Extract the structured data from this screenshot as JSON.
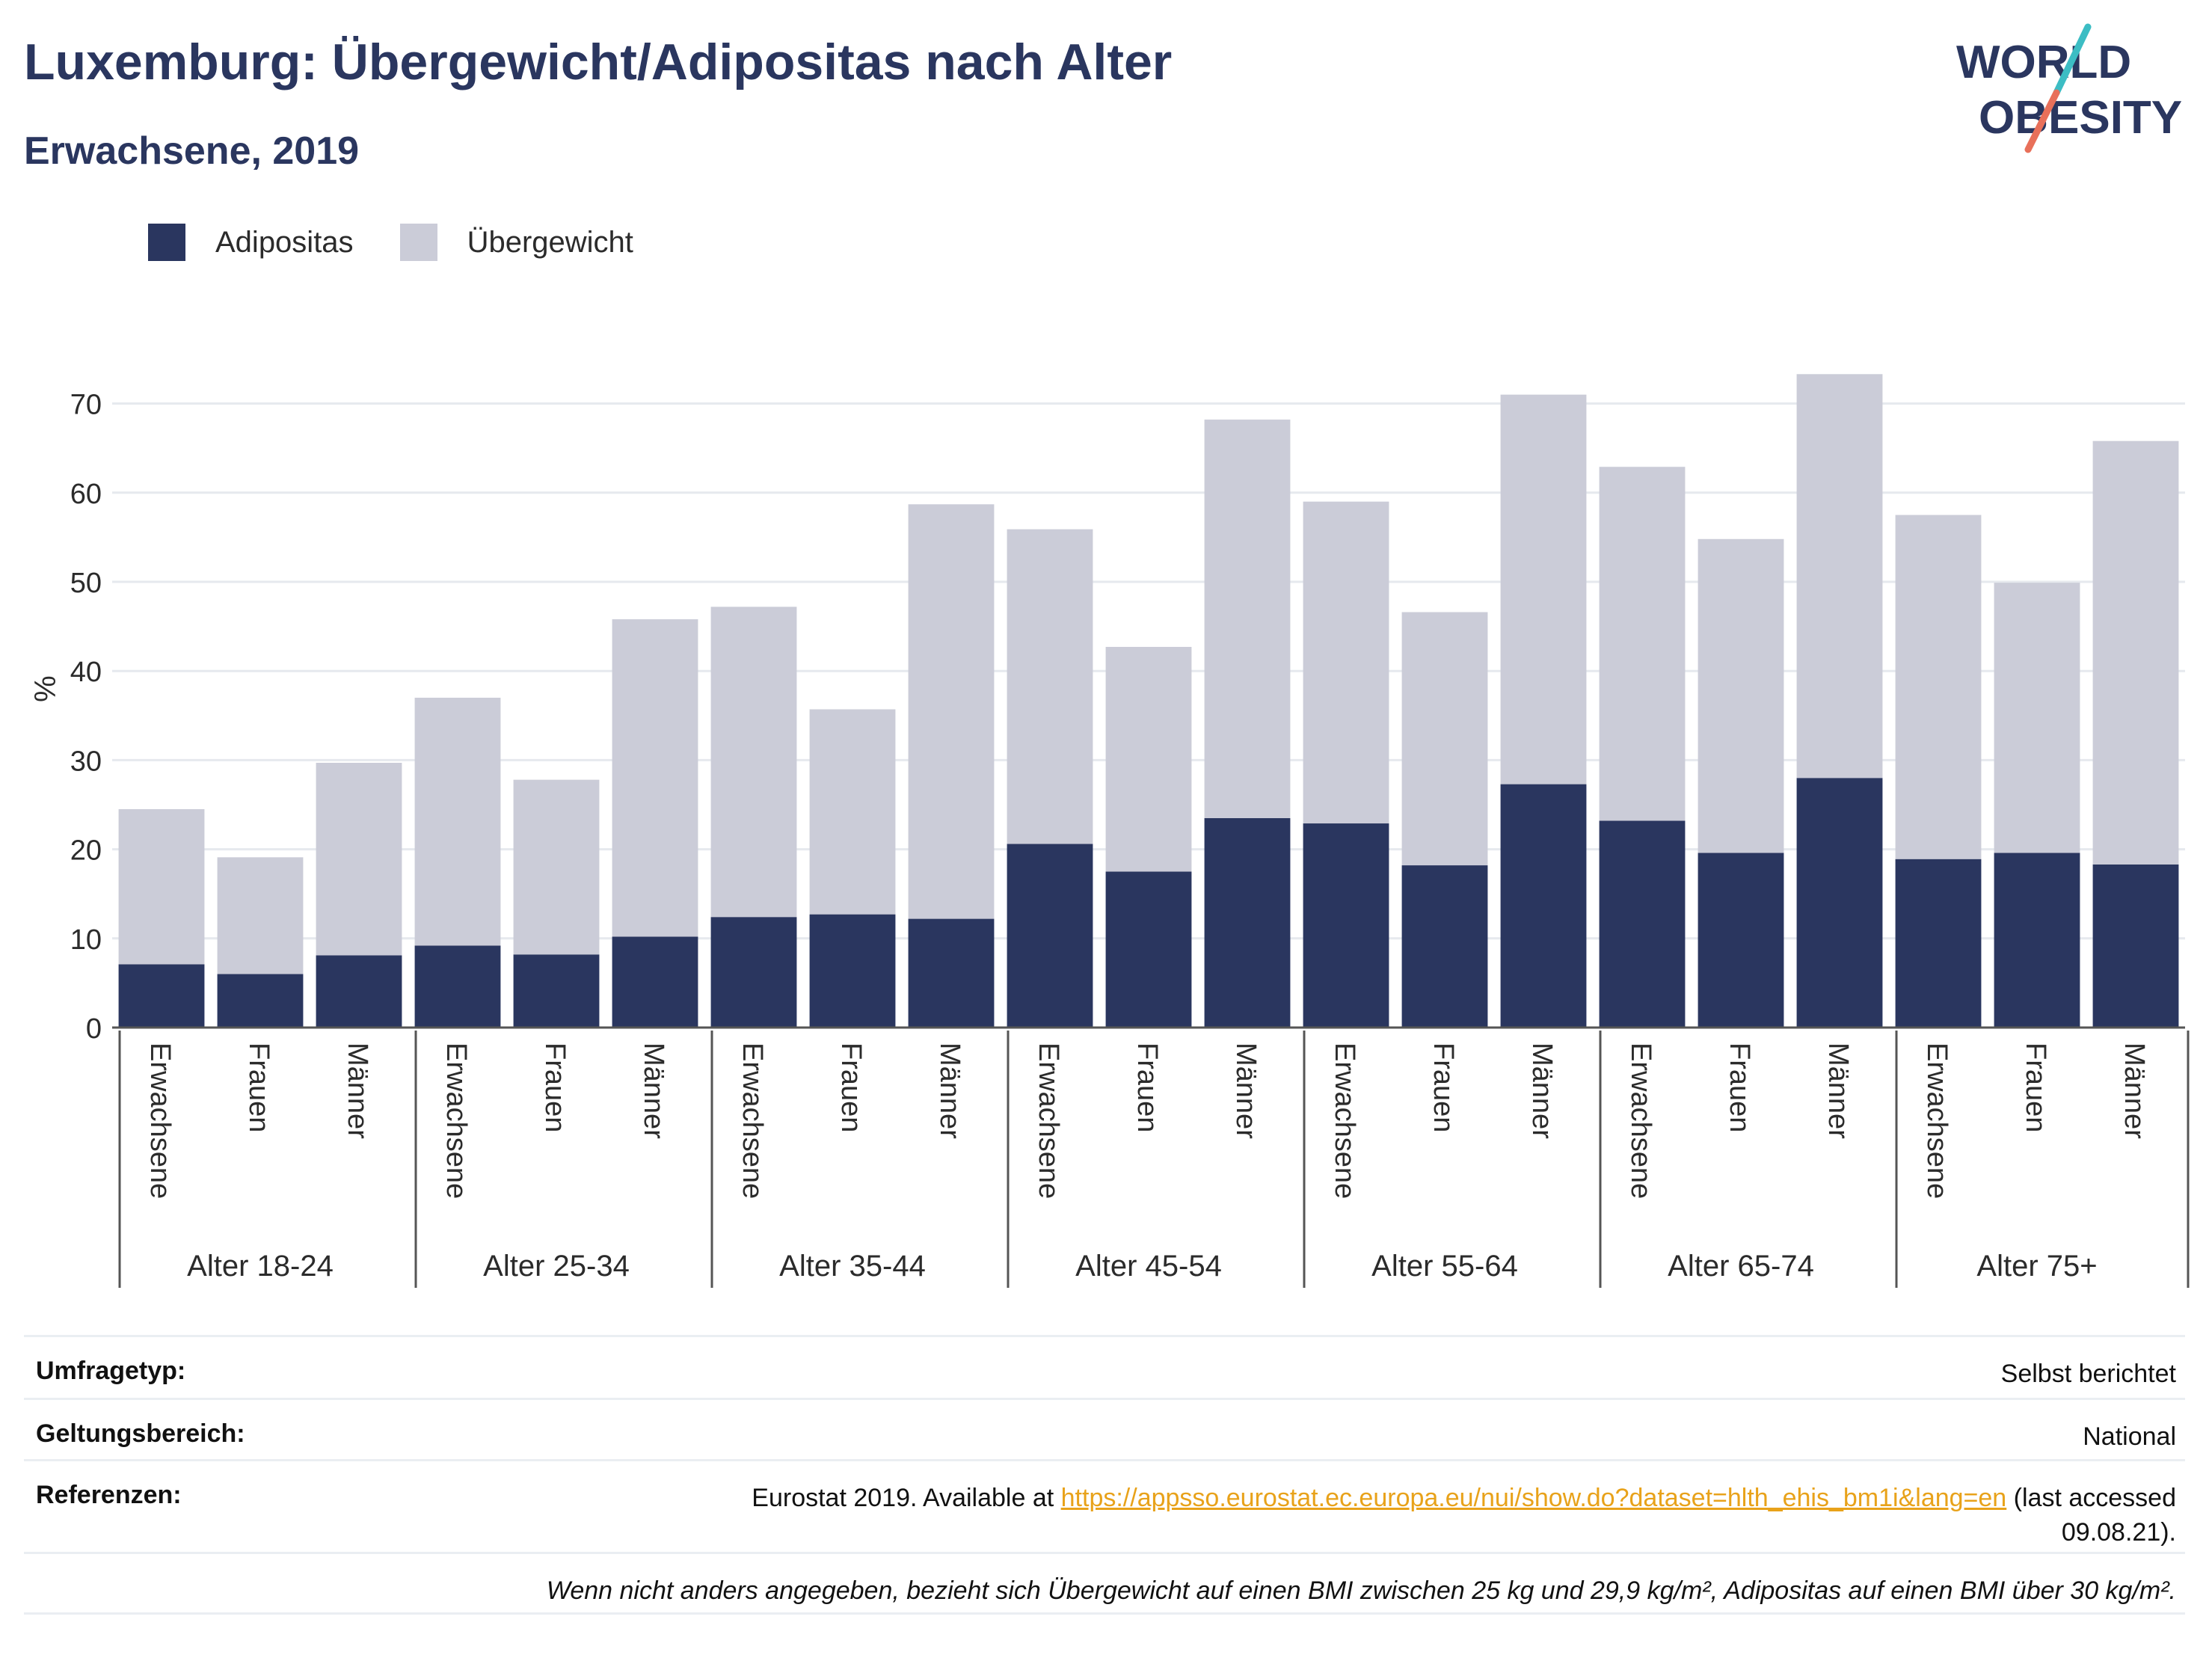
{
  "header": {
    "title": "Luxemburg: Übergewicht/Adipositas nach Alter",
    "subtitle": "Erwachsene, 2019"
  },
  "logo": {
    "line1": "WORLD",
    "line2": "OBESITY",
    "accent1": "#3cbdc4",
    "accent2": "#e8705a"
  },
  "colors": {
    "adipositas": "#2a365f",
    "uebergewicht": "#cbccd8",
    "text": "#2a365f"
  },
  "legend": {
    "items": [
      {
        "label": "Adipositas",
        "color": "#2a365f"
      },
      {
        "label": "Übergewicht",
        "color": "#cbccd8"
      }
    ]
  },
  "chart_data": {
    "type": "bar",
    "stacked": true,
    "ylabel": "%",
    "ylim": [
      0,
      76
    ],
    "yticks": [
      0,
      10,
      20,
      30,
      40,
      50,
      60,
      70
    ],
    "grid": true,
    "legend_position": "top-left",
    "groups": [
      "Alter 18-24",
      "Alter 25-34",
      "Alter 35-44",
      "Alter 45-54",
      "Alter 55-64",
      "Alter 65-74",
      "Alter 75+"
    ],
    "subcategories": [
      "Erwachsene",
      "Frauen",
      "Männer"
    ],
    "series": [
      {
        "name": "Adipositas",
        "color": "#2a365f",
        "values": [
          7.1,
          6.0,
          8.1,
          9.2,
          8.2,
          10.2,
          12.4,
          12.7,
          12.2,
          20.6,
          17.5,
          23.5,
          22.9,
          18.2,
          27.3,
          23.2,
          19.6,
          28.0,
          18.9,
          19.6,
          18.3
        ]
      },
      {
        "name": "Übergewicht",
        "color": "#cbccd8",
        "values": [
          17.4,
          13.1,
          21.6,
          27.8,
          19.6,
          35.6,
          34.8,
          23.0,
          46.5,
          35.3,
          25.2,
          44.7,
          36.1,
          28.4,
          43.7,
          39.7,
          35.2,
          45.3,
          38.6,
          30.3,
          47.5
        ]
      }
    ]
  },
  "footer": {
    "survey": {
      "label": "Umfragetyp:",
      "value": "Selbst berichtet"
    },
    "scope": {
      "label": "Geltungsbereich:",
      "value": "National"
    },
    "references": {
      "label": "Referenzen:",
      "prefix": "Eurostat 2019. Available at",
      "link": "https://appsso.eurostat.ec.europa.eu/nui/show.do?dataset=hlth_ehis_bm1i&lang=en",
      "suffix": "(last accessed 09.08.21)."
    },
    "note": "Wenn nicht anders angegeben, bezieht sich Übergewicht auf einen BMI zwischen 25 kg und 29,9 kg/m², Adipositas auf einen BMI über 30 kg/m²."
  }
}
